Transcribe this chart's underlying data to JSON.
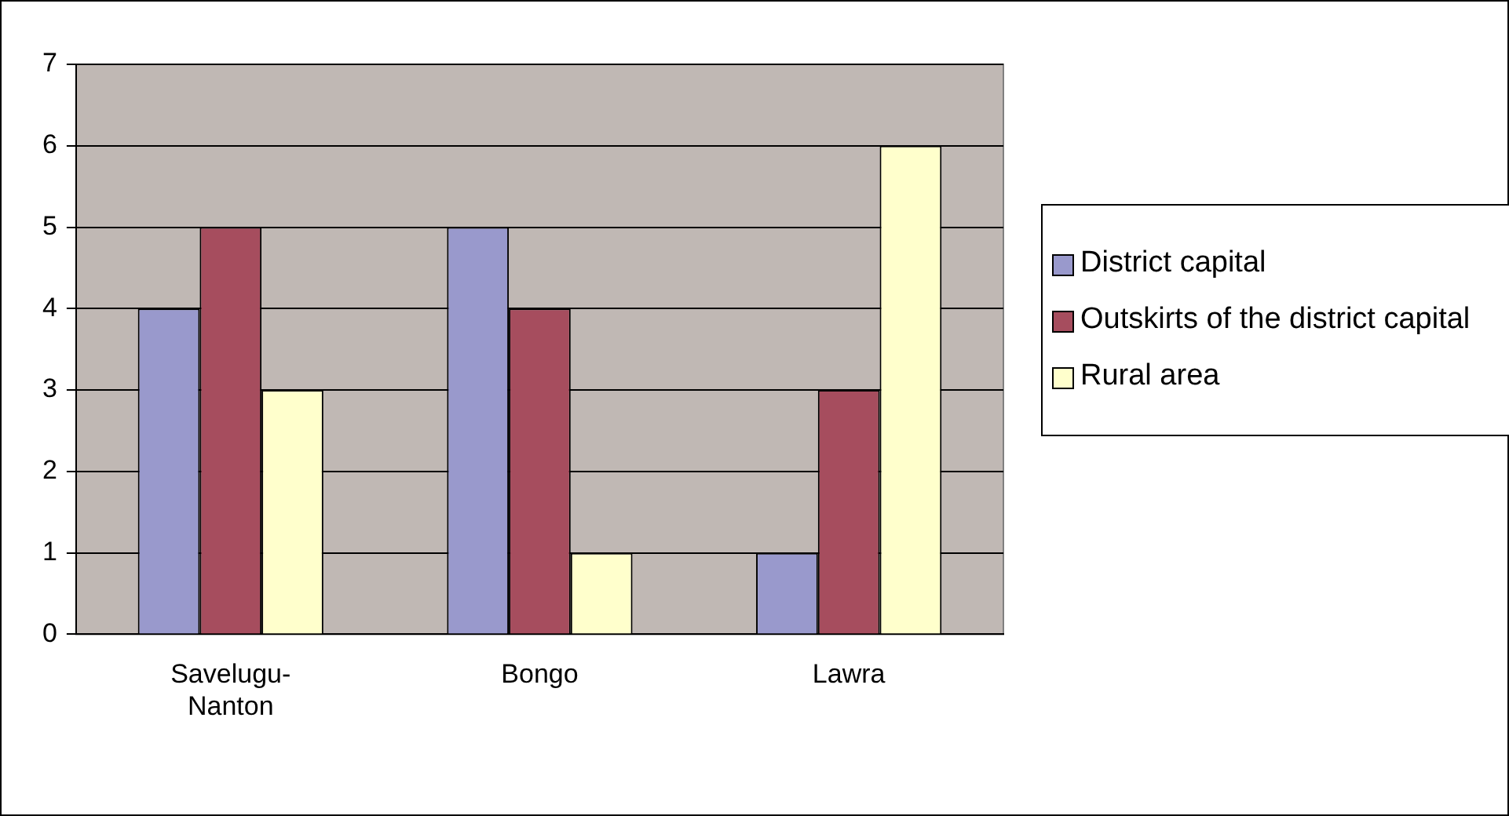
{
  "chart_data": {
    "type": "bar",
    "categories": [
      "Savelugu-Nanton",
      "Bongo",
      "Lawra"
    ],
    "series": [
      {
        "name": "District capital",
        "color": "#9999cc",
        "values": [
          4,
          5,
          1
        ]
      },
      {
        "name": "Outskirts of the district capital",
        "color": "#a64d5e",
        "values": [
          5,
          4,
          3
        ]
      },
      {
        "name": "Rural area",
        "color": "#ffffcc",
        "values": [
          3,
          1,
          6
        ]
      }
    ],
    "ylim": [
      0,
      7
    ],
    "yticks": [
      0,
      1,
      2,
      3,
      4,
      5,
      6,
      7
    ],
    "grid": "y",
    "legend": "right"
  }
}
